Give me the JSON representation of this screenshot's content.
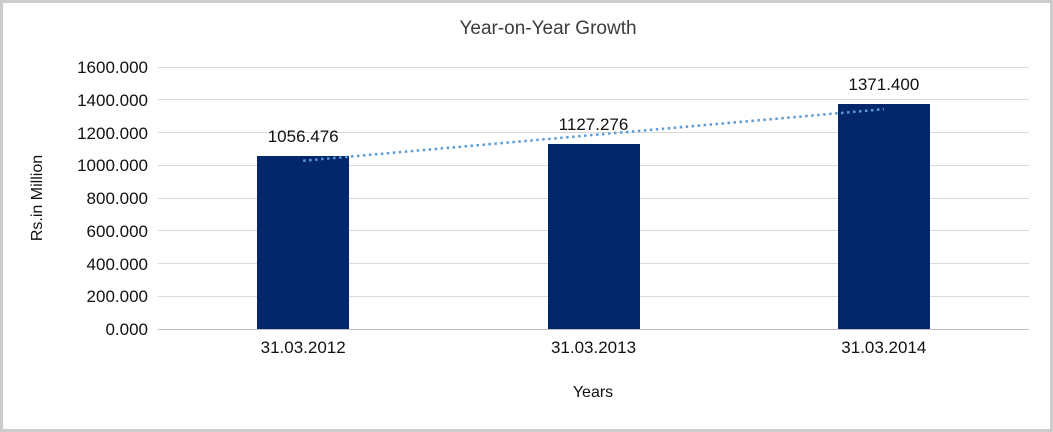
{
  "chart_data": {
    "type": "bar",
    "title": "Year-on-Year Growth",
    "xlabel": "Years",
    "ylabel": "Rs.in Million",
    "categories": [
      "31.03.2012",
      "31.03.2013",
      "31.03.2014"
    ],
    "values": [
      1056.476,
      1127.276,
      1371.4
    ],
    "value_labels": [
      "1056.476",
      "1127.276",
      "1371.400"
    ],
    "yticks": [
      "0.000",
      "200.000",
      "400.000",
      "600.000",
      "800.000",
      "1000.000",
      "1200.000",
      "1400.000",
      "1600.000"
    ],
    "ylim": [
      0,
      1600
    ],
    "grid": true,
    "legend": "none",
    "colors": {
      "bar": "#04266b",
      "trendline": "#5b9bd5",
      "gridline": "#d9d9d9",
      "axis_line": "#bfbfbf",
      "text": "#111111",
      "frame_border": "#cccccc"
    },
    "trendline": {
      "style": "dotted"
    }
  }
}
